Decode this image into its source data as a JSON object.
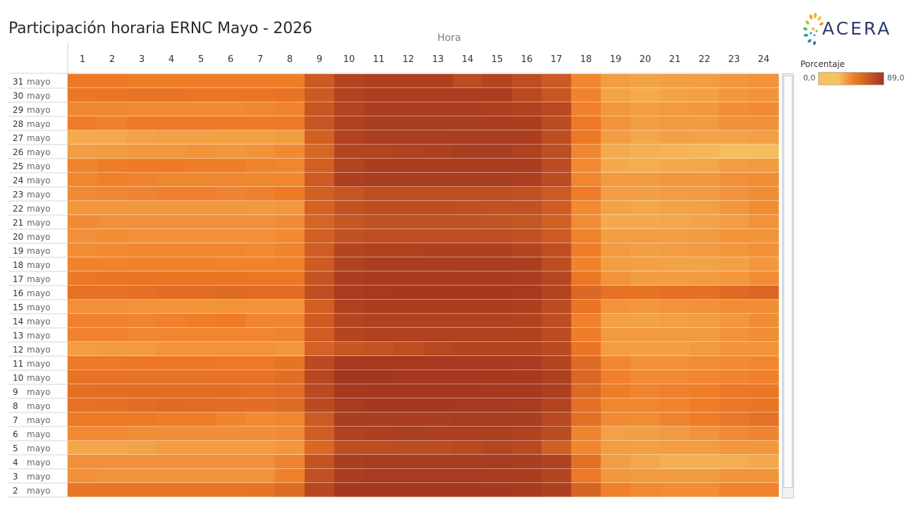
{
  "title": "Participación horaria ERNC Mayo - 2026",
  "logo": {
    "text": "ACERA"
  },
  "legend": {
    "title": "Porcentaje",
    "min_label": "0,0",
    "max_label": "89,0",
    "color_low": "#f6c15f",
    "color_mid": "#ef7a26",
    "color_high": "#a3361f"
  },
  "chart_data": {
    "type": "heatmap",
    "title": "Participación horaria ERNC Mayo - 2026",
    "xlabel": "Hora",
    "ylabel": "",
    "x": [
      "1",
      "2",
      "3",
      "4",
      "5",
      "6",
      "7",
      "8",
      "9",
      "10",
      "11",
      "12",
      "13",
      "14",
      "15",
      "16",
      "17",
      "18",
      "19",
      "20",
      "21",
      "22",
      "23",
      "24"
    ],
    "y_days": [
      "31",
      "30",
      "29",
      "28",
      "27",
      "26",
      "25",
      "24",
      "23",
      "22",
      "21",
      "20",
      "19",
      "18",
      "17",
      "16",
      "15",
      "14",
      "13",
      "12",
      "11",
      "10",
      "9",
      "8",
      "7",
      "6",
      "5",
      "4",
      "3",
      "2"
    ],
    "y_month": "mayo",
    "value_range": [
      0,
      89
    ],
    "values": [
      [
        49,
        49,
        48,
        48,
        48,
        48,
        48,
        48,
        68,
        80,
        83,
        83,
        83,
        76,
        80,
        75,
        68,
        45,
        38,
        36,
        37,
        38,
        40,
        41
      ],
      [
        51,
        52,
        53,
        53,
        52,
        52,
        52,
        53,
        68,
        82,
        85,
        85,
        84,
        84,
        84,
        77,
        70,
        46,
        36,
        34,
        36,
        37,
        40,
        41
      ],
      [
        45,
        45,
        44,
        44,
        44,
        44,
        45,
        46,
        70,
        81,
        84,
        84,
        84,
        84,
        83,
        82,
        77,
        47,
        40,
        38,
        39,
        40,
        43,
        44
      ],
      [
        48,
        47,
        49,
        50,
        50,
        49,
        49,
        50,
        70,
        82,
        85,
        85,
        84,
        84,
        84,
        84,
        76,
        50,
        41,
        38,
        39,
        39,
        42,
        42
      ],
      [
        34,
        34,
        36,
        37,
        37,
        37,
        37,
        38,
        64,
        82,
        84,
        85,
        85,
        84,
        84,
        84,
        75,
        50,
        38,
        35,
        37,
        36,
        36,
        37
      ],
      [
        38,
        39,
        40,
        40,
        41,
        40,
        41,
        44,
        61,
        80,
        81,
        82,
        83,
        85,
        85,
        82,
        75,
        45,
        34,
        32,
        31,
        30,
        28,
        28
      ],
      [
        46,
        48,
        49,
        49,
        48,
        48,
        46,
        45,
        64,
        81,
        84,
        84,
        84,
        84,
        84,
        84,
        76,
        44,
        34,
        33,
        34,
        35,
        38,
        39
      ],
      [
        45,
        47,
        46,
        45,
        45,
        45,
        45,
        45,
        67,
        83,
        84,
        84,
        84,
        84,
        84,
        83,
        76,
        45,
        39,
        39,
        40,
        40,
        42,
        43
      ],
      [
        44,
        45,
        46,
        47,
        47,
        46,
        47,
        49,
        64,
        70,
        74,
        74,
        75,
        75,
        75,
        73,
        68,
        48,
        38,
        37,
        38,
        39,
        41,
        43
      ],
      [
        40,
        40,
        40,
        40,
        40,
        40,
        39,
        40,
        63,
        72,
        75,
        75,
        75,
        74,
        73,
        73,
        66,
        44,
        36,
        35,
        36,
        37,
        40,
        43
      ],
      [
        44,
        42,
        42,
        42,
        42,
        42,
        42,
        44,
        62,
        70,
        73,
        73,
        73,
        73,
        72,
        71,
        64,
        43,
        34,
        34,
        35,
        36,
        38,
        41
      ],
      [
        42,
        43,
        42,
        42,
        42,
        42,
        42,
        44,
        64,
        73,
        75,
        75,
        75,
        75,
        75,
        73,
        67,
        46,
        38,
        38,
        38,
        39,
        41,
        41
      ],
      [
        43,
        44,
        45,
        45,
        45,
        45,
        44,
        46,
        66,
        80,
        82,
        82,
        83,
        83,
        83,
        80,
        74,
        48,
        39,
        37,
        38,
        39,
        40,
        42
      ],
      [
        46,
        46,
        47,
        47,
        47,
        46,
        46,
        47,
        67,
        82,
        84,
        84,
        84,
        85,
        85,
        84,
        75,
        46,
        38,
        37,
        36,
        36,
        37,
        40
      ],
      [
        50,
        52,
        52,
        52,
        52,
        52,
        51,
        51,
        72,
        85,
        86,
        86,
        86,
        86,
        86,
        85,
        79,
        51,
        41,
        38,
        38,
        39,
        40,
        43
      ],
      [
        54,
        54,
        55,
        57,
        57,
        58,
        57,
        57,
        74,
        86,
        87,
        88,
        88,
        88,
        88,
        87,
        81,
        60,
        54,
        53,
        55,
        55,
        58,
        60
      ],
      [
        42,
        42,
        41,
        41,
        41,
        41,
        41,
        41,
        64,
        82,
        84,
        84,
        84,
        84,
        84,
        83,
        76,
        52,
        41,
        40,
        41,
        42,
        43,
        43
      ],
      [
        47,
        47,
        46,
        47,
        48,
        49,
        46,
        45,
        67,
        80,
        82,
        82,
        82,
        82,
        82,
        81,
        75,
        47,
        37,
        36,
        37,
        38,
        40,
        43
      ],
      [
        46,
        46,
        45,
        45,
        45,
        45,
        45,
        46,
        66,
        80,
        82,
        82,
        82,
        82,
        82,
        82,
        76,
        48,
        39,
        39,
        39,
        39,
        41,
        43
      ],
      [
        38,
        39,
        39,
        41,
        41,
        41,
        41,
        40,
        63,
        70,
        72,
        74,
        78,
        80,
        80,
        80,
        77,
        52,
        38,
        37,
        37,
        39,
        41,
        41
      ],
      [
        50,
        50,
        51,
        51,
        51,
        50,
        50,
        53,
        77,
        87,
        87,
        87,
        87,
        87,
        87,
        86,
        81,
        58,
        45,
        42,
        42,
        43,
        44,
        45
      ],
      [
        53,
        53,
        53,
        53,
        53,
        53,
        53,
        56,
        79,
        89,
        89,
        88,
        88,
        88,
        87,
        87,
        83,
        60,
        47,
        44,
        44,
        45,
        46,
        47
      ],
      [
        55,
        56,
        56,
        56,
        56,
        56,
        55,
        57,
        77,
        87,
        88,
        88,
        88,
        88,
        87,
        87,
        83,
        59,
        48,
        46,
        47,
        48,
        50,
        51
      ],
      [
        54,
        55,
        56,
        58,
        57,
        56,
        56,
        58,
        77,
        86,
        88,
        88,
        88,
        87,
        87,
        86,
        81,
        55,
        45,
        45,
        46,
        48,
        51,
        52
      ],
      [
        50,
        50,
        49,
        48,
        48,
        46,
        44,
        45,
        68,
        84,
        85,
        85,
        85,
        86,
        86,
        85,
        78,
        55,
        44,
        43,
        46,
        48,
        51,
        54
      ],
      [
        44,
        44,
        43,
        43,
        43,
        43,
        43,
        44,
        66,
        82,
        83,
        84,
        83,
        83,
        83,
        82,
        76,
        46,
        37,
        38,
        39,
        41,
        44,
        46
      ],
      [
        35,
        35,
        36,
        38,
        38,
        38,
        38,
        40,
        60,
        74,
        74,
        76,
        76,
        78,
        80,
        78,
        64,
        45,
        38,
        37,
        38,
        38,
        40,
        40
      ],
      [
        42,
        42,
        42,
        42,
        42,
        42,
        42,
        46,
        72,
        85,
        86,
        86,
        86,
        86,
        86,
        85,
        82,
        55,
        38,
        35,
        32,
        32,
        33,
        34
      ],
      [
        42,
        41,
        41,
        41,
        41,
        41,
        41,
        47,
        73,
        85,
        86,
        86,
        86,
        86,
        85,
        84,
        80,
        50,
        40,
        39,
        39,
        39,
        41,
        41
      ],
      [
        52,
        52,
        52,
        52,
        52,
        52,
        53,
        58,
        79,
        88,
        88,
        88,
        88,
        88,
        87,
        86,
        83,
        62,
        47,
        44,
        43,
        43,
        46,
        46
      ]
    ]
  }
}
